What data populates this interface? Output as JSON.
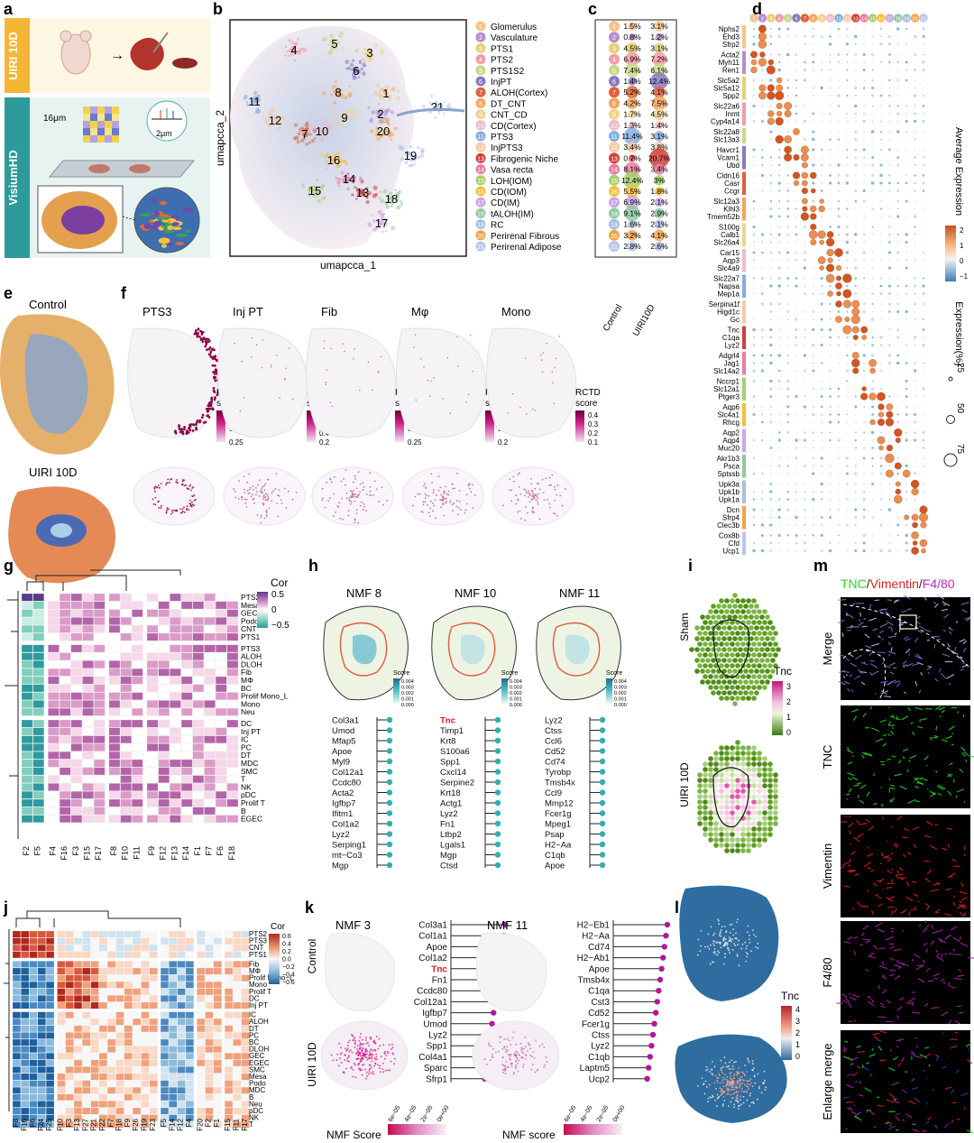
{
  "panel_letters": [
    "a",
    "b",
    "c",
    "d",
    "e",
    "f",
    "g",
    "h",
    "i",
    "j",
    "k",
    "l",
    "m"
  ],
  "a": {
    "top_label": "UIRI 10D",
    "bottom_label": "VisiumHD",
    "size_16": "16μm",
    "size_2": "2μm"
  },
  "b": {
    "xlabel": "umapcca_1",
    "ylabel": "umapcca_2"
  },
  "clusters": [
    {
      "id": "1",
      "name": "Glomerulus",
      "color": "#f4c28c",
      "control": "1.5%",
      "uiri": "3.1%"
    },
    {
      "id": "2",
      "name": "Vasculature",
      "color": "#b58fd0",
      "control": "0.8%",
      "uiri": "1.2%"
    },
    {
      "id": "3",
      "name": "PTS1",
      "color": "#e8cf7a",
      "control": "4.5%",
      "uiri": "3.1%"
    },
    {
      "id": "4",
      "name": "PTS2",
      "color": "#f39ca8",
      "control": "6.9%",
      "uiri": "7.2%"
    },
    {
      "id": "5",
      "name": "PTS1S2",
      "color": "#c9d98a",
      "control": "7.4%",
      "uiri": "6.1%"
    },
    {
      "id": "6",
      "name": "InjPT",
      "color": "#8a79c2",
      "control": "1.4%",
      "uiri": "12.4%"
    },
    {
      "id": "7",
      "name": "ALOH(Cortex)",
      "color": "#e0613b",
      "control": "5.2%",
      "uiri": "4.1%"
    },
    {
      "id": "8",
      "name": "DT_CNT",
      "color": "#f2a65c",
      "control": "4.2%",
      "uiri": "7.5%"
    },
    {
      "id": "9",
      "name": "CNT_CD",
      "color": "#efd48d",
      "control": "1.7%",
      "uiri": "4.5%"
    },
    {
      "id": "10",
      "name": "CD(Cortex)",
      "color": "#f3b9c9",
      "control": "1.3%",
      "uiri": "1.4%"
    },
    {
      "id": "11",
      "name": "PTS3",
      "color": "#86aee0",
      "control": "11.4%",
      "uiri": "3.1%"
    },
    {
      "id": "12",
      "name": "InjPTS3",
      "color": "#f5c9a8",
      "control": "3.4%",
      "uiri": "3.8%"
    },
    {
      "id": "13",
      "name": "Fibrogenic Niche",
      "color": "#d23e3a",
      "control": "0.7%",
      "uiri": "20.7%"
    },
    {
      "id": "14",
      "name": "Vasa recta",
      "color": "#e67ea0",
      "control": "8.1%",
      "uiri": "3.4%"
    },
    {
      "id": "15",
      "name": "LOH(IOM)",
      "color": "#a6d06f",
      "control": "12.4%",
      "uiri": "3%"
    },
    {
      "id": "16",
      "name": "CD(IOM)",
      "color": "#f6bf3c",
      "control": "5.5%",
      "uiri": "1.8%"
    },
    {
      "id": "17",
      "name": "CD(IM)",
      "color": "#c9a8e3",
      "control": "6.9%",
      "uiri": "2.1%"
    },
    {
      "id": "18",
      "name": "tALOH(IM)",
      "color": "#91c9a0",
      "control": "9.1%",
      "uiri": "2.9%"
    },
    {
      "id": "19",
      "name": "RC",
      "color": "#a7bfe0",
      "control": "1.6%",
      "uiri": "2.1%"
    },
    {
      "id": "20",
      "name": "Perirenal Fibrous",
      "color": "#f3a44a",
      "control": "3.2%",
      "uiri": "4.1%"
    },
    {
      "id": "21",
      "name": "Perirenal Adipose",
      "color": "#b7c7ec",
      "control": "2.8%",
      "uiri": "2.6%"
    }
  ],
  "c": {
    "xlabels": [
      "Control",
      "UIRI10D"
    ]
  },
  "d": {
    "gene_groups": [
      [
        "Nphs2",
        "Ehd3",
        "Sfrp2"
      ],
      [
        "Acta2",
        "Myh11",
        "Ren1"
      ],
      [
        "Slc5a2",
        "Slc5a12",
        "Spp2"
      ],
      [
        "Slc22a6",
        "Inmt",
        "Cyp4a14"
      ],
      [
        "Slc22a8",
        "Slc13a3"
      ],
      [
        "Havcr1",
        "Vcam1",
        "Ubd"
      ],
      [
        "Cldn16",
        "Casr",
        "Ccgr"
      ],
      [
        "Slc12a3",
        "Klhl3",
        "Tmem52b"
      ],
      [
        "S100g",
        "Calb1",
        "Slc26a4"
      ],
      [
        "Car15",
        "Aqp3",
        "Slc4a9"
      ],
      [
        "Slc22a7",
        "Napsa",
        "Mep1a"
      ],
      [
        "Serpina1f",
        "Higd1c",
        "Gc"
      ],
      [
        "Tnc",
        "C1qa",
        "Lyz2"
      ],
      [
        "Adgrl4",
        "Jag1",
        "Slc14a2"
      ],
      [
        "Nccrp1",
        "Slc12a1",
        "Ptger3"
      ],
      [
        "Aqp6",
        "Slc4a1",
        "Rhcg"
      ],
      [
        "Aqp2",
        "Aqp4",
        "Muc20"
      ],
      [
        "Akr1b3",
        "Psca",
        "Sptssb"
      ],
      [
        "Upk3a",
        "Upk1b",
        "Upk1a"
      ],
      [
        "Dcn",
        "Sfrp4",
        "Clec3b"
      ],
      [
        "Cox8b",
        "Cfd",
        "Ucp1"
      ]
    ],
    "legend_expr_title": "Average Expression",
    "legend_expr_ticks": [
      "2",
      "1",
      "0",
      "−1"
    ],
    "legend_pct_title": "Expression(%)",
    "legend_pct_ticks": [
      "25",
      "50",
      "75"
    ]
  },
  "e": {
    "labels": [
      "Control",
      "UIRI 10D"
    ]
  },
  "f": {
    "titles": [
      "PTS3",
      "Inj PT",
      "Fib",
      "Mφ",
      "Mono"
    ],
    "legend_title": "RCTD\nscore",
    "ticks": [
      [
        "0.75",
        "0.50",
        "0.25"
      ],
      [
        "0.8",
        "0.6",
        "0.4",
        "0.2"
      ],
      [
        "0.75",
        "0.50",
        "0.25"
      ],
      [
        "0.6",
        "0.4",
        "0.2"
      ],
      [
        "0.4",
        "0.3",
        "0.2",
        "0.1"
      ]
    ]
  },
  "g": {
    "rows": [
      "PTS2",
      "Mesa",
      "GEC",
      "Podo",
      "CNT",
      "PTS1",
      "PTS3",
      "ALOH",
      "DLOH",
      "Fib",
      "MΦ",
      "BC",
      "Prolif Mono_L",
      "Mono",
      "Neu",
      "DC",
      "Inj PT",
      "IC",
      "PC",
      "DT",
      "MDC",
      "SMC",
      "T",
      "NK",
      "pDC",
      "Prolif T",
      "B",
      "EGEC"
    ],
    "cols": [
      "F2",
      "F5",
      "F4",
      "F16",
      "F3",
      "F15",
      "F17",
      "F8",
      "F10",
      "F11",
      "F9",
      "F12",
      "F13",
      "F14",
      "F1",
      "F7",
      "F6",
      "F18"
    ],
    "legend_title": "Cor",
    "legend_ticks": [
      "0.5",
      "0",
      "−0.5"
    ]
  },
  "h": {
    "panels": [
      {
        "title": "NMF 8",
        "genes": [
          "Col3a1",
          "Umod",
          "Mfap5",
          "Apoe",
          "Myl9",
          "Col12a1",
          "Ccdc80",
          "Acta2",
          "Igfbp7",
          "Ifitm1",
          "Col1a2",
          "Lyz2",
          "Serping1",
          "mt−Co3",
          "Mgp"
        ],
        "ticks": [
          "0.004",
          "0.003",
          "0.002",
          "0.001",
          "0.000"
        ]
      },
      {
        "title": "NMF 10",
        "genes": [
          "Tnc",
          "Timp1",
          "Krt8",
          "S100a6",
          "Spp1",
          "Cxcl14",
          "Serpine2",
          "Krt18",
          "Actg1",
          "Lyz2",
          "Fn1",
          "Ltbp2",
          "Lgals1",
          "Mgp",
          "Ctsd"
        ],
        "ticks": [
          "0.004",
          "0.003",
          "0.002",
          "0.001",
          "0.000"
        ]
      },
      {
        "title": "NMF 11",
        "genes": [
          "Lyz2",
          "Ctss",
          "Ccl6",
          "Cd52",
          "Cd74",
          "Tyrobp",
          "Tmsb4x",
          "Ccl9",
          "Mmp12",
          "Fcer1g",
          "Mpeg1",
          "Psap",
          "H2−Aa",
          "C1qb",
          "Apoe"
        ],
        "ticks": [
          "0.004",
          "0.003",
          "0.002",
          "0.001",
          "0.000"
        ]
      }
    ],
    "score_label": "Score",
    "highlight": "Tnc"
  },
  "i": {
    "labels": [
      "Sham",
      "UIRI 10D"
    ],
    "legend_title": "Tnc",
    "ticks": [
      "3",
      "2",
      "1",
      "0"
    ]
  },
  "j": {
    "rows": [
      "PTS2",
      "PTS3",
      "CNT",
      "PTS1",
      "Fib",
      "MΦ",
      "Prolif Mono−L",
      "Mono",
      "Prolif T",
      "DC",
      "Inj PT",
      "IC",
      "ALOH",
      "DT",
      "PC",
      "BC",
      "DLOH",
      "GEC",
      "EGEC",
      "SMC",
      "Mesa",
      "Podo",
      "MDC",
      "B",
      "Neu",
      "pDC",
      "NK",
      "T"
    ],
    "cols": [
      "F8",
      "F16",
      "F6",
      "F24",
      "F25",
      "F10",
      "F3",
      "F13",
      "F27",
      "F21",
      "F22",
      "F7",
      "F18",
      "F9",
      "F26",
      "F19",
      "F23",
      "F5",
      "F14",
      "F12",
      "F4",
      "F20",
      "F2",
      "F1",
      "F15",
      "F11",
      "F17"
    ],
    "legend_title": "Cor",
    "legend_ticks": [
      "0.6",
      "0.4",
      "0.2",
      "0.0",
      "−0.2",
      "−0.4",
      "−0.6"
    ]
  },
  "k": {
    "row_labels": [
      "Control",
      "UIRI 10D"
    ],
    "nmf3": {
      "title": "NMF 3",
      "genes": [
        "Col3a1",
        "Col1a1",
        "Apoe",
        "Col1a2",
        "Tnc",
        "Fn1",
        "Ccdc80",
        "Col12a1",
        "Igfbp7",
        "Umod",
        "Lyz2",
        "Spp1",
        "Col4a1",
        "Sparc",
        "Sfrp1"
      ],
      "legend": "NMF Score"
    },
    "nmf11": {
      "title": "NMF 11",
      "genes": [
        "H2−Eb1",
        "H2−Aa",
        "Cd74",
        "H2−Ab1",
        "Apoe",
        "Tmsb4x",
        "C1qa",
        "Cst3",
        "Cd52",
        "Fcer1g",
        "Ctss",
        "Lyz2",
        "C1qb",
        "Laptm5",
        "Ucp2"
      ],
      "legend": "NMF score"
    },
    "ticks": [
      "6e−05",
      "4e−05",
      "2e−05",
      "0e+00"
    ]
  },
  "l": {
    "legend_title": "Tnc",
    "ticks": [
      "4",
      "3",
      "2",
      "1",
      "0"
    ]
  },
  "m": {
    "title_parts": [
      {
        "t": "TNC",
        "c": "#32d232"
      },
      {
        "t": "/",
        "c": "#222"
      },
      {
        "t": "Vimentin",
        "c": "#e02020"
      },
      {
        "t": "/",
        "c": "#222"
      },
      {
        "t": "F4/80",
        "c": "#c026c0"
      }
    ],
    "row_labels": [
      "Merge",
      "TNC",
      "Vimentin",
      "F4/80",
      "Enlarge merge"
    ]
  },
  "colors": {
    "teal": "#3aa8b8",
    "magenta": "#b4168c",
    "green": "#4d8a18",
    "blue": "#2f6da0"
  }
}
